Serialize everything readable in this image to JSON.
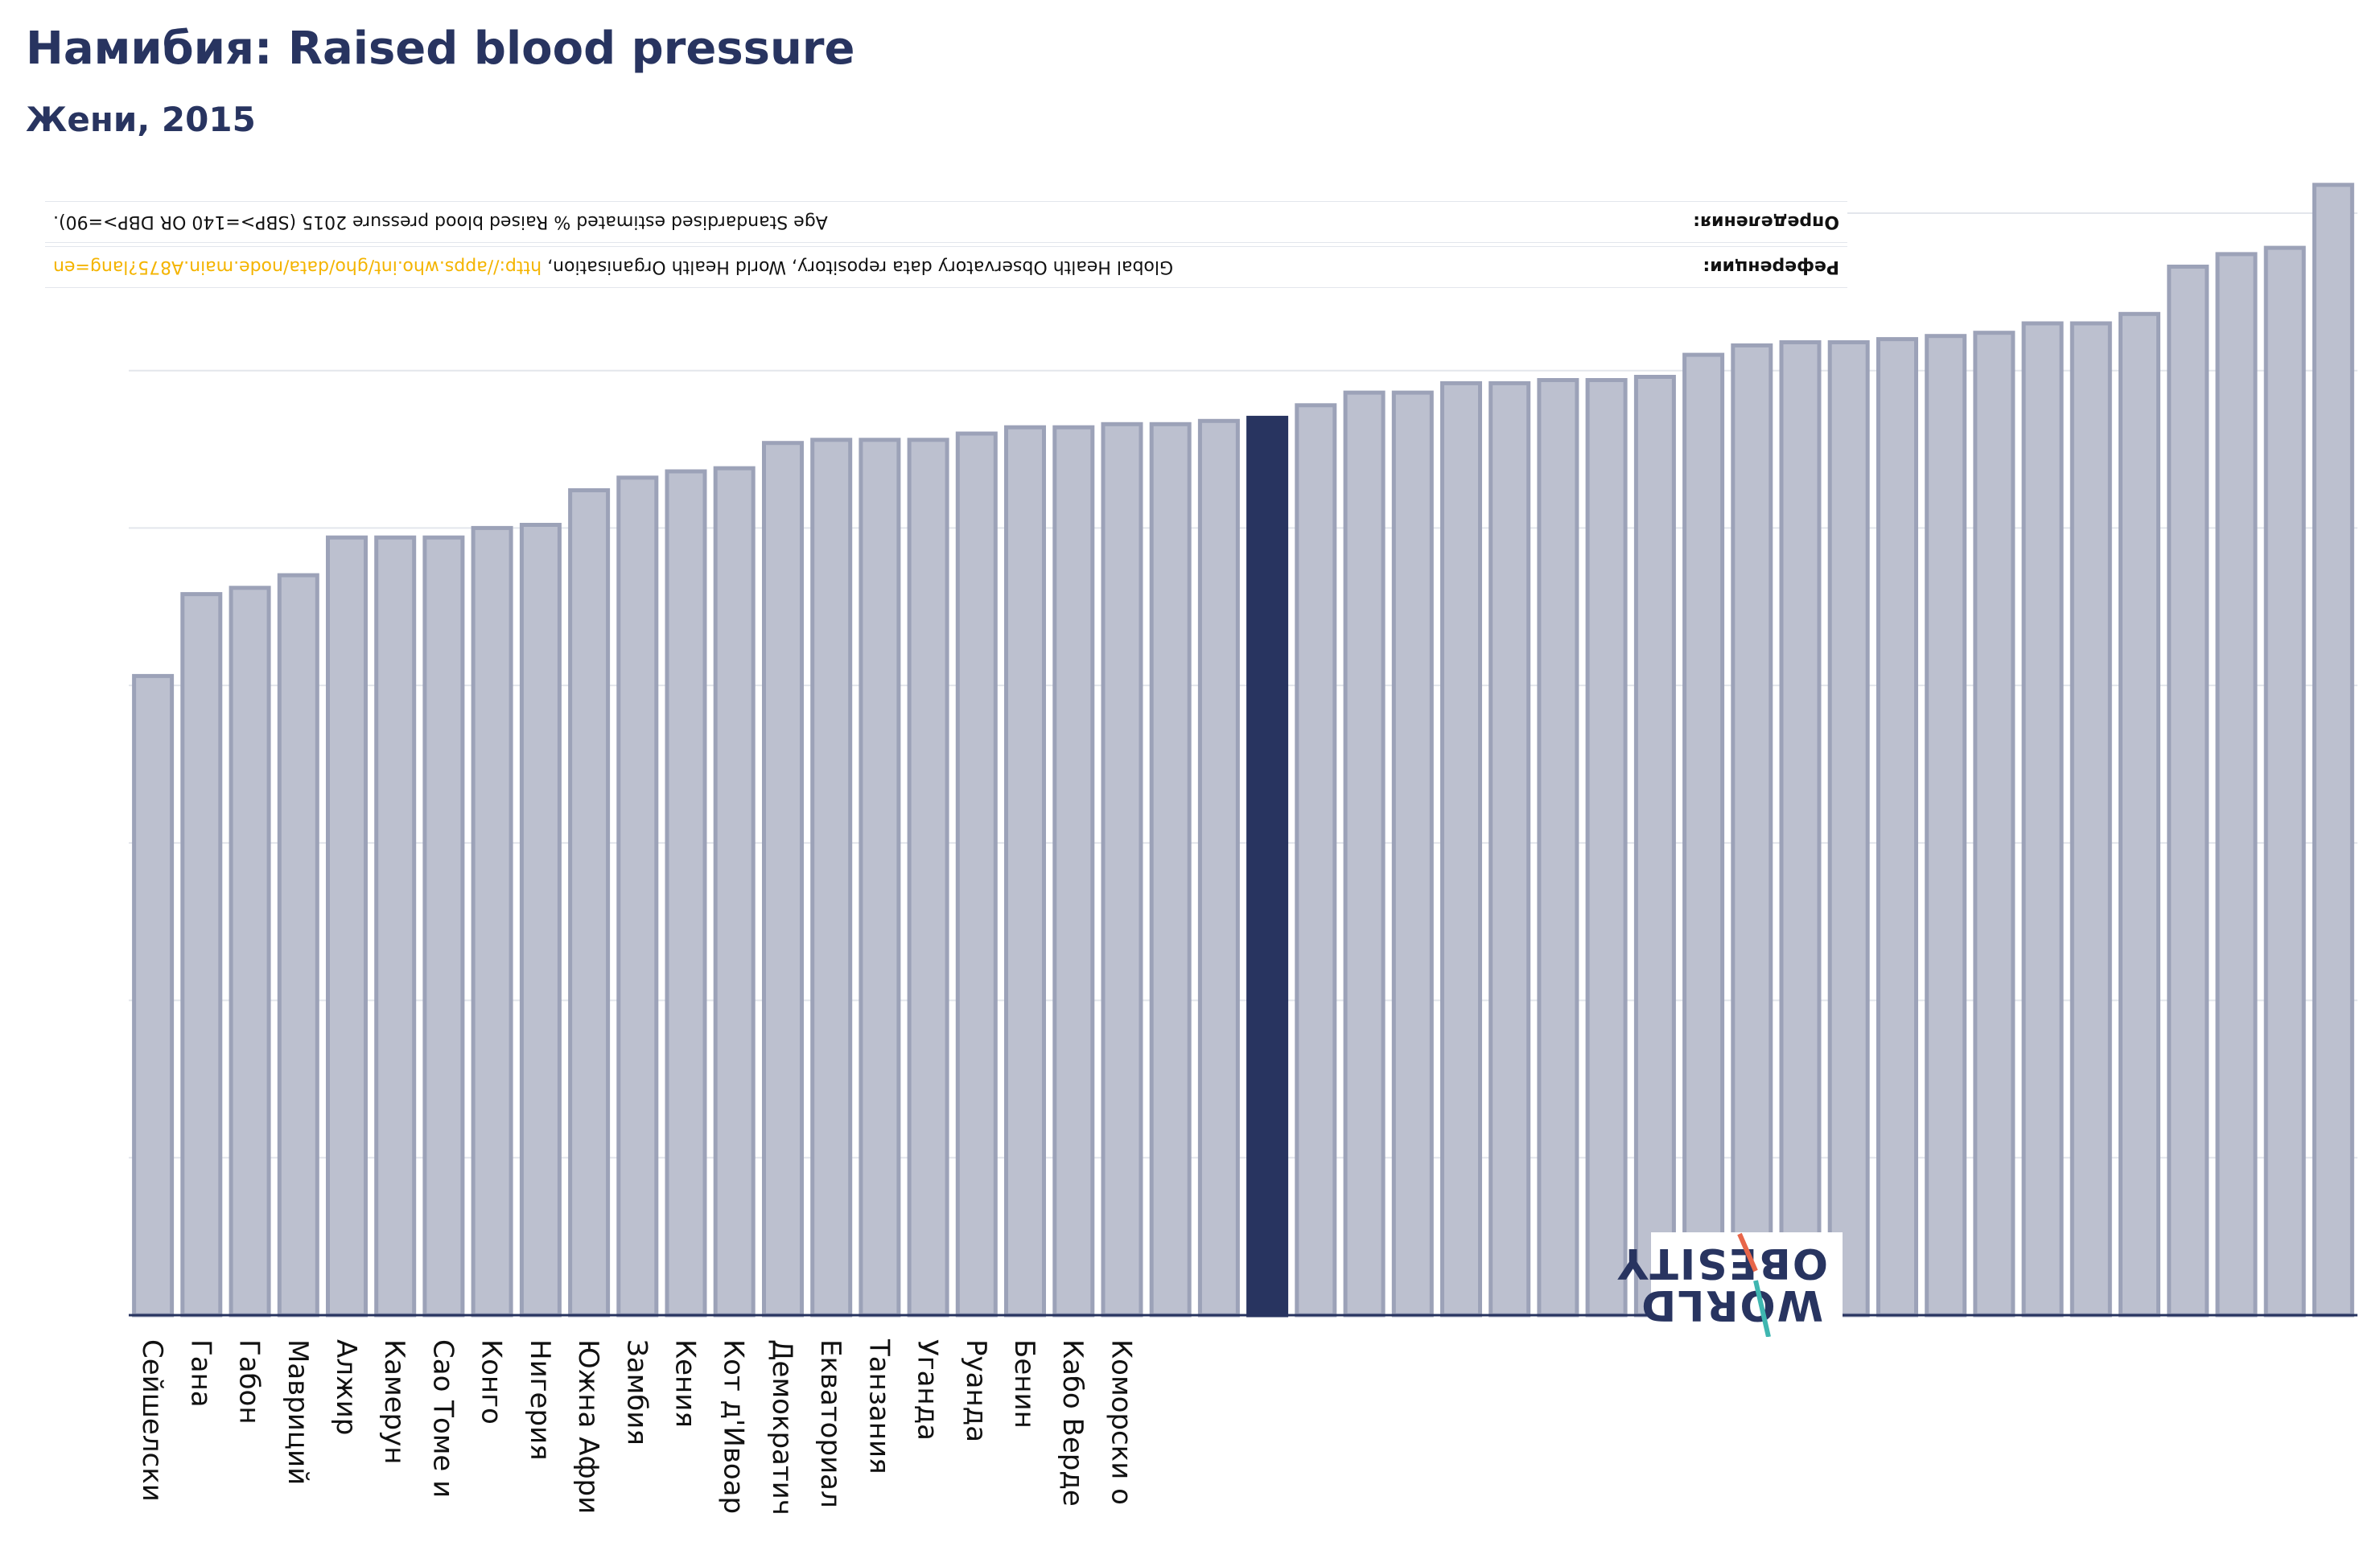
{
  "title": "Намибия: Raised blood pressure",
  "subtitle": "Жени, 2015",
  "definitions": {
    "label": "Определения:",
    "text": "Age Standardised estimated % Raised blood pressure 2015 (SBP>=140 OR DBP>=90)."
  },
  "references": {
    "label": "Референции:",
    "text": "Global Health Observatory data repository, World Health Organisation,",
    "link": "http://apps.who.int/gho/data/node.main.A875?lang=en"
  },
  "logo": {
    "line1": "WORLD",
    "line2": "OBESITY"
  },
  "colors": {
    "bar": "#bcc0cf",
    "bar_stroke": "#9ca2b8",
    "highlight": "#283460",
    "grid": "#e3e6ec",
    "axis": "#283460",
    "title": "#283460",
    "link": "#f4b400"
  },
  "chart_data": {
    "type": "bar",
    "title": "Намибия: Raised blood pressure",
    "subtitle": "Жени, 2015",
    "ylim": [
      0,
      35
    ],
    "grid": true,
    "highlight_index": 23,
    "categories": [
      "Сейшелски",
      "Гана",
      "Габон",
      "Мавриций",
      "Алжир",
      "Камерун",
      "Сао Томе и",
      "Конго",
      "Нигерия",
      "Южна Афри",
      "Замбия",
      "Кения",
      "Кот д'Ивоар",
      "Демократич",
      "Екваториал",
      "Танзания",
      "Уганда",
      "Руанда",
      "Бенин",
      "Кабо Верде",
      "Коморски о",
      "",
      "",
      "",
      "",
      "",
      "",
      "",
      "",
      "",
      "",
      "",
      "",
      "",
      "",
      "",
      "",
      "",
      "",
      "",
      "",
      "",
      "",
      "",
      "",
      ""
    ],
    "values": [
      20.3,
      22.9,
      23.1,
      23.5,
      24.7,
      24.7,
      24.7,
      25.0,
      25.1,
      26.2,
      26.6,
      26.8,
      26.9,
      27.7,
      27.8,
      27.8,
      27.8,
      28.0,
      28.2,
      28.2,
      28.3,
      28.3,
      28.4,
      28.5,
      28.9,
      29.3,
      29.3,
      29.6,
      29.6,
      29.7,
      29.7,
      29.8,
      30.5,
      30.8,
      30.9,
      30.9,
      31.0,
      31.1,
      31.2,
      31.5,
      31.5,
      31.8,
      33.3,
      33.7,
      33.9,
      35.9
    ]
  }
}
